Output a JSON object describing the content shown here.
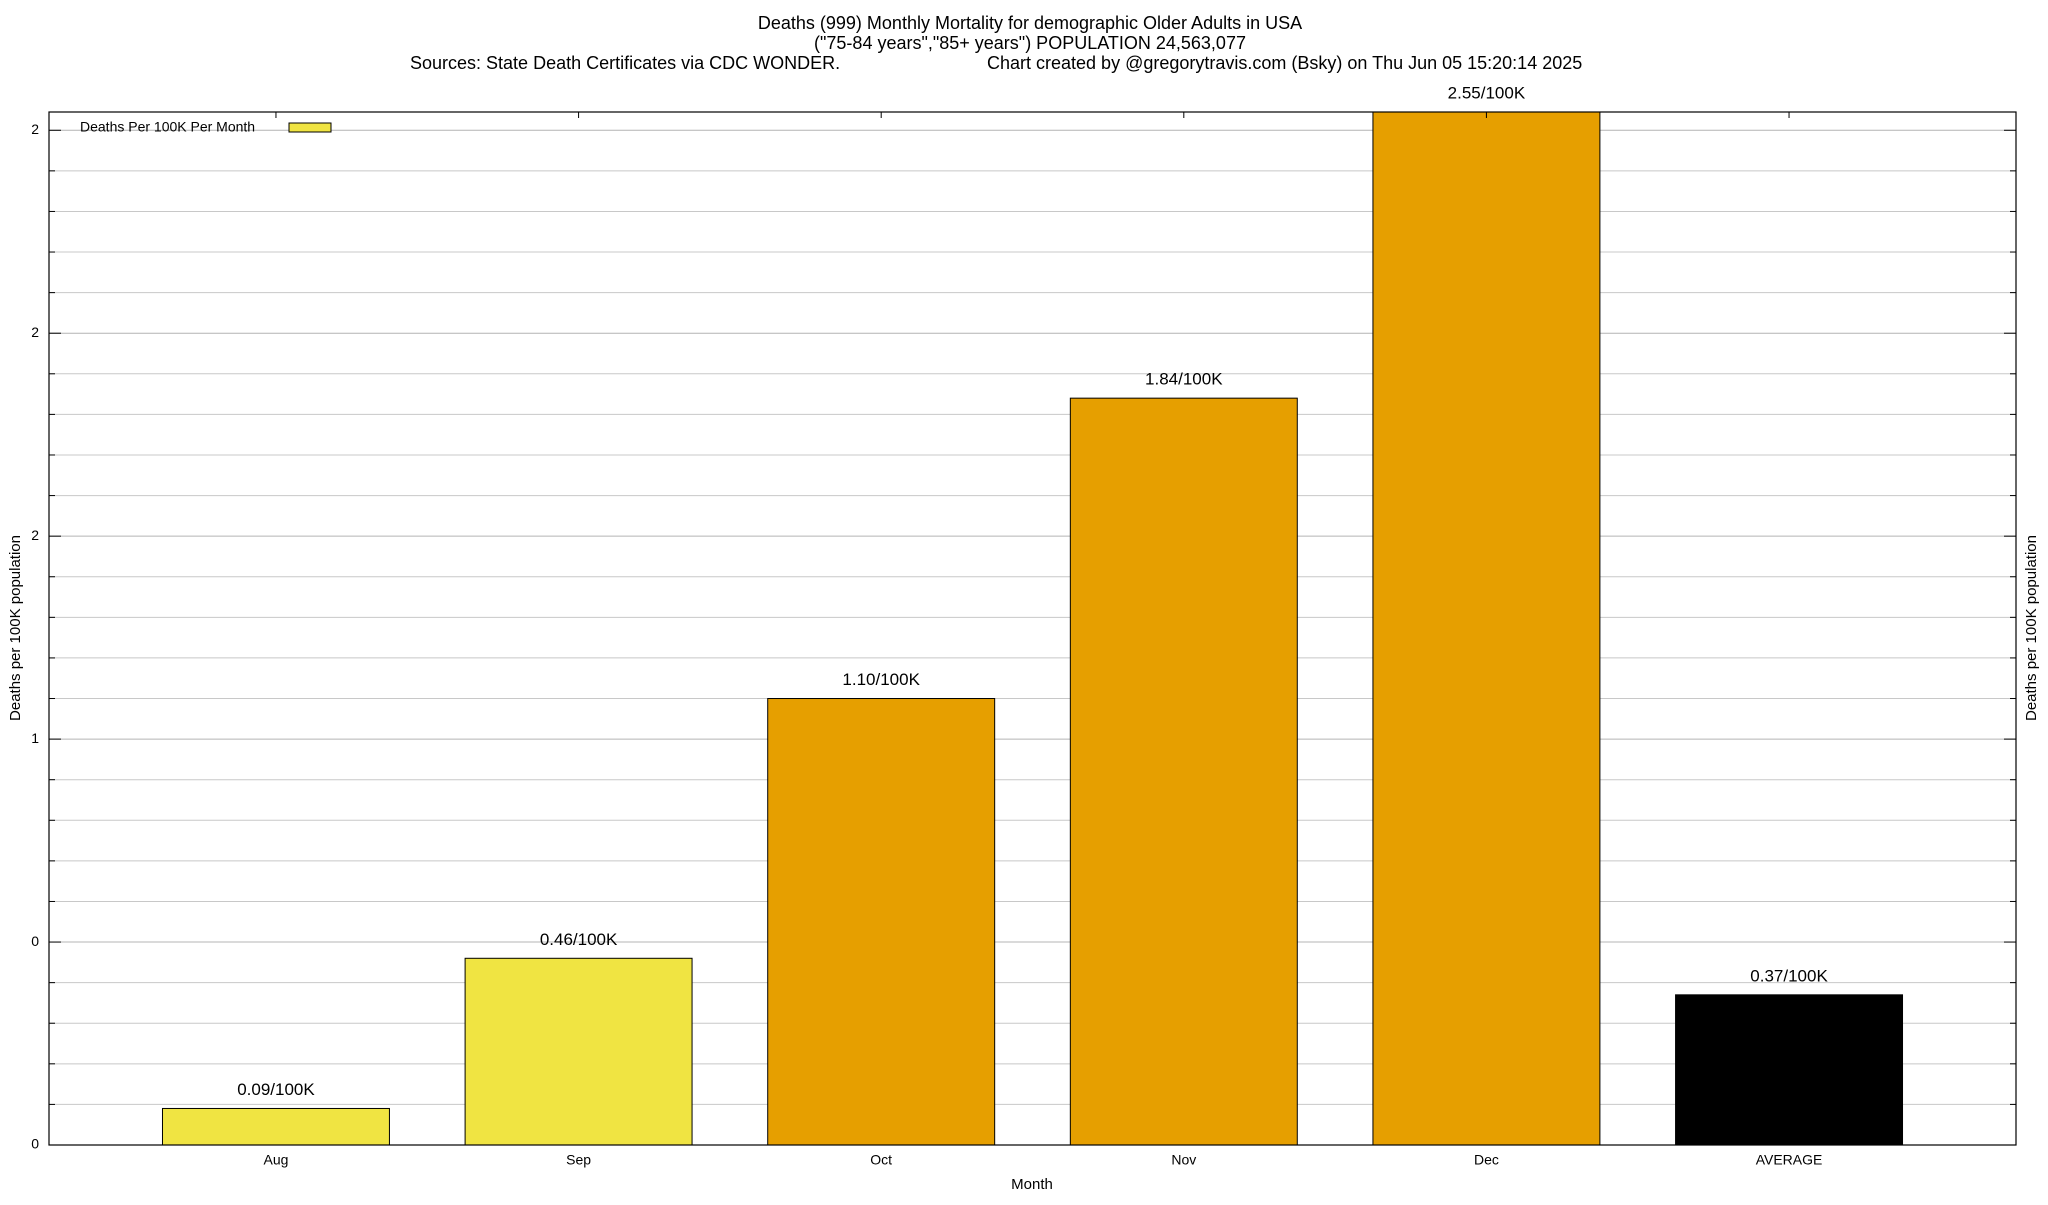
{
  "chart_data": {
    "type": "bar",
    "title": "Deaths (999) Monthly Mortality for demographic Older Adults in USA",
    "subtitle": "(\"75-84 years\",\"85+ years\") POPULATION 24,563,077",
    "source": "Sources: State Death Certificates via CDC WONDER.",
    "credit": "Chart created by @gregorytravis.com (Bsky) on Thu Jun 05 15:20:14 2025",
    "xlabel": "Month",
    "ylabel": "Deaths per 100K population",
    "categories": [
      "Aug",
      "Sep",
      "Oct",
      "Nov",
      "Dec",
      "AVERAGE"
    ],
    "series": [
      {
        "name": "Deaths Per 100K Per Month",
        "color": "#f0e442",
        "values": [
          0.09,
          0.46,
          1.1,
          1.84,
          2.55,
          0.37
        ],
        "value_labels": [
          "0.09/100K",
          "0.46/100K",
          "1.10/100K",
          "1.84/100K",
          "2.55/100K",
          "0.37/100K"
        ],
        "colors": [
          "#f0e442",
          "#f0e442",
          "#e69f00",
          "#e69f00",
          "#e69f00",
          "#000000"
        ]
      }
    ],
    "ylim": [
      0,
      2.545
    ],
    "yticks": [
      0,
      {
        "value": 0.5,
        "label": "0"
      },
      1,
      {
        "value": 1.5,
        "label": "2"
      },
      2,
      {
        "value": 2.5,
        "label": "2"
      }
    ],
    "yminorticks": [
      0.1,
      0.2,
      0.3,
      0.4,
      0.6,
      0.7,
      0.8,
      0.9,
      1.1,
      1.2,
      1.3,
      1.4,
      1.6,
      1.7,
      1.8,
      1.9,
      2.1,
      2.2,
      2.3,
      2.4
    ],
    "grid": true,
    "legend": "top-left"
  }
}
